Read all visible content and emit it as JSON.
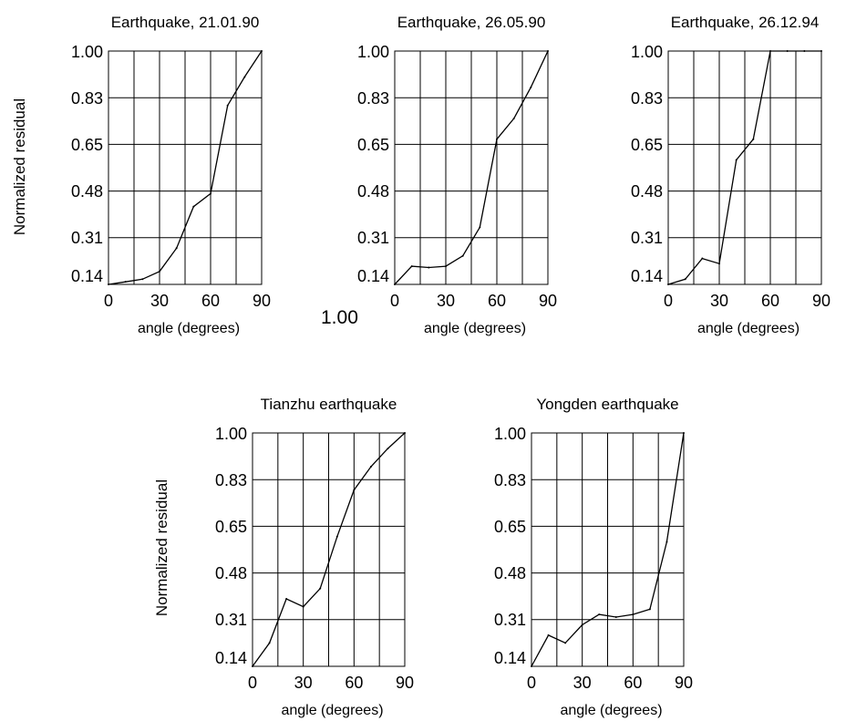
{
  "ylabel": "Normalized residual",
  "stray_label": "1.00",
  "chart_data": [
    {
      "type": "line",
      "title": "Earthquake, 21.01.90",
      "xlabel": "angle (degrees)",
      "ylabel": "Normalized residual",
      "xlim": [
        0,
        90
      ],
      "ylim": [
        0.1,
        1.0
      ],
      "x_ticks": [
        "0",
        "30",
        "60",
        "90"
      ],
      "y_ticks": [
        "1.00",
        "0.83",
        "0.65",
        "0.48",
        "0.31",
        "0.14"
      ],
      "grid": true,
      "x": [
        0,
        10,
        20,
        30,
        40,
        50,
        60,
        70,
        80,
        90
      ],
      "y": [
        0.1,
        0.11,
        0.12,
        0.15,
        0.24,
        0.4,
        0.45,
        0.79,
        0.9,
        1.0
      ]
    },
    {
      "type": "line",
      "title": "Earthquake, 26.05.90",
      "xlabel": "angle (degrees)",
      "ylabel": "",
      "xlim": [
        0,
        90
      ],
      "ylim": [
        0.1,
        1.0
      ],
      "x_ticks": [
        "0",
        "30",
        "60",
        "90"
      ],
      "y_ticks": [
        "1.00",
        "0.83",
        "0.65",
        "0.48",
        "0.31",
        "0.14"
      ],
      "grid": true,
      "x": [
        0,
        10,
        20,
        30,
        40,
        50,
        60,
        70,
        80,
        90
      ],
      "y": [
        0.1,
        0.17,
        0.165,
        0.17,
        0.21,
        0.32,
        0.66,
        0.74,
        0.86,
        1.0
      ]
    },
    {
      "type": "line",
      "title": "Earthquake, 26.12.94",
      "xlabel": "angle (degrees)",
      "ylabel": "",
      "xlim": [
        0,
        90
      ],
      "ylim": [
        0.1,
        1.0
      ],
      "x_ticks": [
        "0",
        "30",
        "60",
        "90"
      ],
      "y_ticks": [
        "1.00",
        "0.83",
        "0.65",
        "0.48",
        "0.31",
        "0.14"
      ],
      "grid": true,
      "x": [
        0,
        10,
        20,
        30,
        40,
        50,
        60,
        70,
        80,
        90
      ],
      "y": [
        0.1,
        0.12,
        0.2,
        0.18,
        0.58,
        0.66,
        1.0,
        1.0,
        1.0,
        1.0
      ]
    },
    {
      "type": "line",
      "title": "Tianzhu earthquake",
      "xlabel": "angle (degrees)",
      "ylabel": "Normalized residual",
      "xlim": [
        0,
        90
      ],
      "ylim": [
        0.1,
        1.0
      ],
      "x_ticks": [
        "0",
        "30",
        "60",
        "90"
      ],
      "y_ticks": [
        "1.00",
        "0.83",
        "0.65",
        "0.48",
        "0.31",
        "0.14"
      ],
      "grid": true,
      "x": [
        0,
        10,
        20,
        30,
        40,
        50,
        60,
        70,
        80,
        90
      ],
      "y": [
        0.1,
        0.19,
        0.36,
        0.33,
        0.4,
        0.6,
        0.78,
        0.87,
        0.94,
        1.0
      ]
    },
    {
      "type": "line",
      "title": "Yongden earthquake",
      "xlabel": "angle (degrees)",
      "ylabel": "",
      "xlim": [
        0,
        90
      ],
      "ylim": [
        0.1,
        1.0
      ],
      "x_ticks": [
        "0",
        "30",
        "60",
        "90"
      ],
      "y_ticks": [
        "1.00",
        "0.83",
        "0.65",
        "0.48",
        "0.31",
        "0.14"
      ],
      "grid": true,
      "x": [
        0,
        10,
        20,
        30,
        40,
        50,
        60,
        70,
        80,
        90
      ],
      "y": [
        0.1,
        0.22,
        0.19,
        0.26,
        0.3,
        0.29,
        0.3,
        0.32,
        0.58,
        1.0
      ]
    }
  ]
}
